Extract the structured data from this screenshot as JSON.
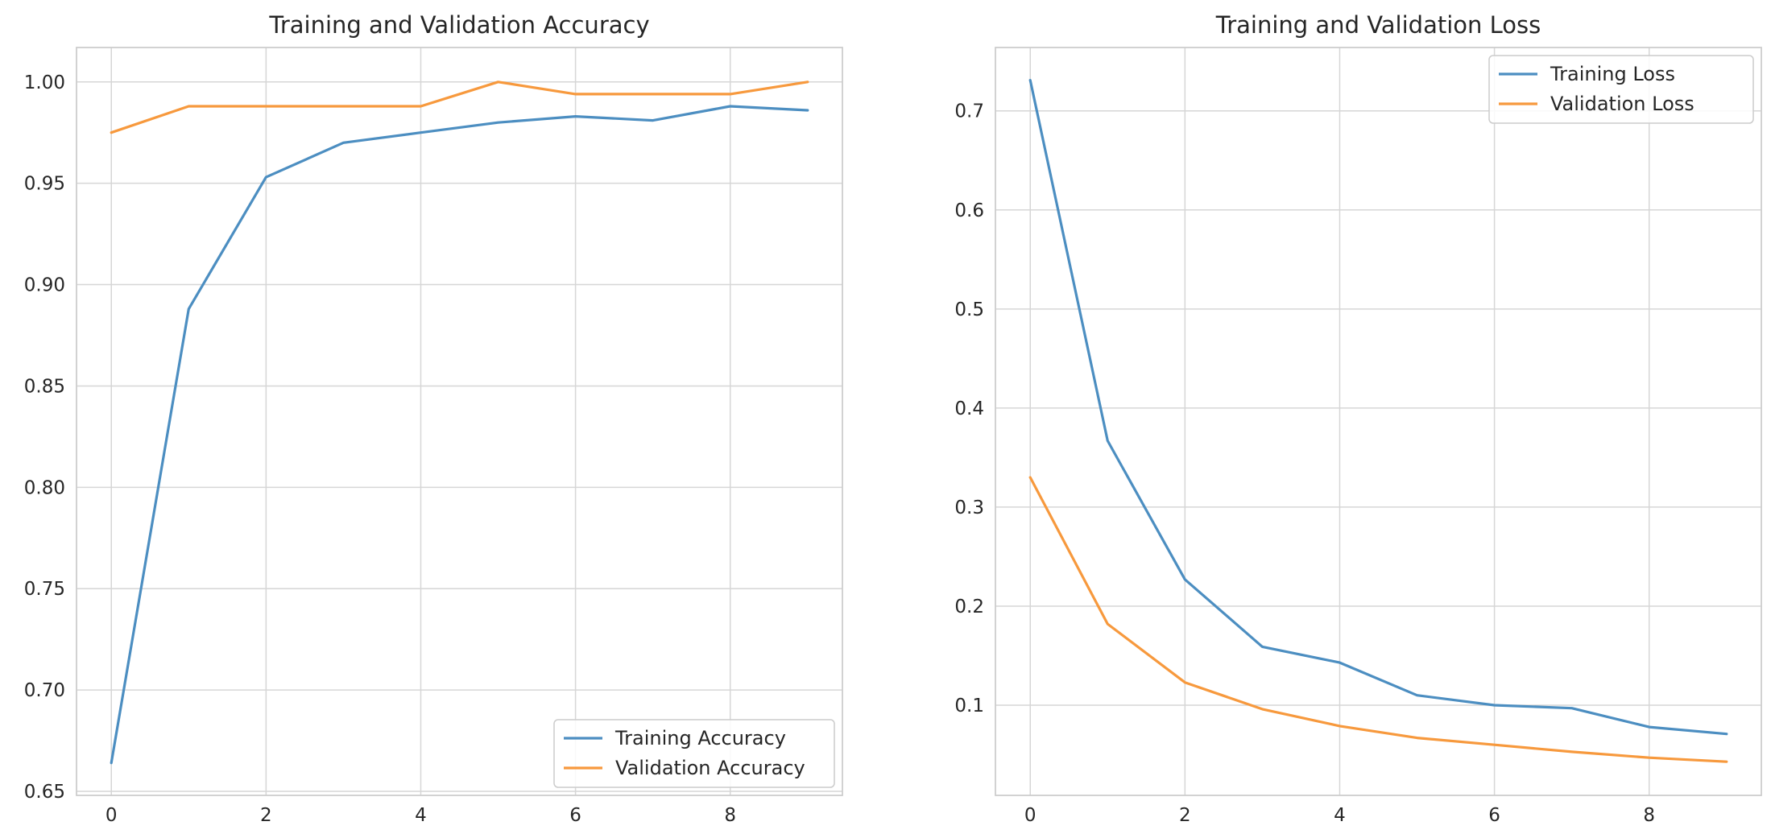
{
  "chart_data": [
    {
      "type": "line",
      "title": "Training and Validation Accuracy",
      "xlabel": "",
      "ylabel": "",
      "x": [
        0,
        1,
        2,
        3,
        4,
        5,
        6,
        7,
        8,
        9
      ],
      "xlim": [
        -0.45,
        9.45
      ],
      "ylim": [
        0.648,
        1.017
      ],
      "xticks": [
        0,
        2,
        4,
        6,
        8
      ],
      "xtick_labels": [
        "0",
        "2",
        "4",
        "6",
        "8"
      ],
      "yticks": [
        0.65,
        0.7,
        0.75,
        0.8,
        0.85,
        0.9,
        0.95,
        1.0
      ],
      "ytick_labels": [
        "0.65",
        "0.70",
        "0.75",
        "0.80",
        "0.85",
        "0.90",
        "0.95",
        "1.00"
      ],
      "grid": true,
      "legend_position": "lower-right",
      "series": [
        {
          "name": "Training Accuracy",
          "color": "#4c8ec1",
          "values": [
            0.664,
            0.888,
            0.953,
            0.97,
            0.975,
            0.98,
            0.983,
            0.981,
            0.988,
            0.986
          ]
        },
        {
          "name": "Validation Accuracy",
          "color": "#f7993d",
          "values": [
            0.975,
            0.988,
            0.988,
            0.988,
            0.988,
            1.0,
            0.994,
            0.994,
            0.994,
            1.0
          ]
        }
      ]
    },
    {
      "type": "line",
      "title": "Training and Validation Loss",
      "xlabel": "",
      "ylabel": "",
      "x": [
        0,
        1,
        2,
        3,
        4,
        5,
        6,
        7,
        8,
        9
      ],
      "xlim": [
        -0.45,
        9.45
      ],
      "ylim": [
        0.009,
        0.764
      ],
      "xticks": [
        0,
        2,
        4,
        6,
        8
      ],
      "xtick_labels": [
        "0",
        "2",
        "4",
        "6",
        "8"
      ],
      "yticks": [
        0.1,
        0.2,
        0.3,
        0.4,
        0.5,
        0.6,
        0.7
      ],
      "ytick_labels": [
        "0.1",
        "0.2",
        "0.3",
        "0.4",
        "0.5",
        "0.6",
        "0.7"
      ],
      "grid": true,
      "legend_position": "upper-right",
      "series": [
        {
          "name": "Training Loss",
          "color": "#4c8ec1",
          "values": [
            0.731,
            0.367,
            0.227,
            0.159,
            0.143,
            0.11,
            0.1,
            0.097,
            0.078,
            0.071
          ]
        },
        {
          "name": "Validation Loss",
          "color": "#f7993d",
          "values": [
            0.33,
            0.182,
            0.123,
            0.096,
            0.079,
            0.067,
            0.06,
            0.053,
            0.047,
            0.043
          ]
        }
      ]
    }
  ]
}
